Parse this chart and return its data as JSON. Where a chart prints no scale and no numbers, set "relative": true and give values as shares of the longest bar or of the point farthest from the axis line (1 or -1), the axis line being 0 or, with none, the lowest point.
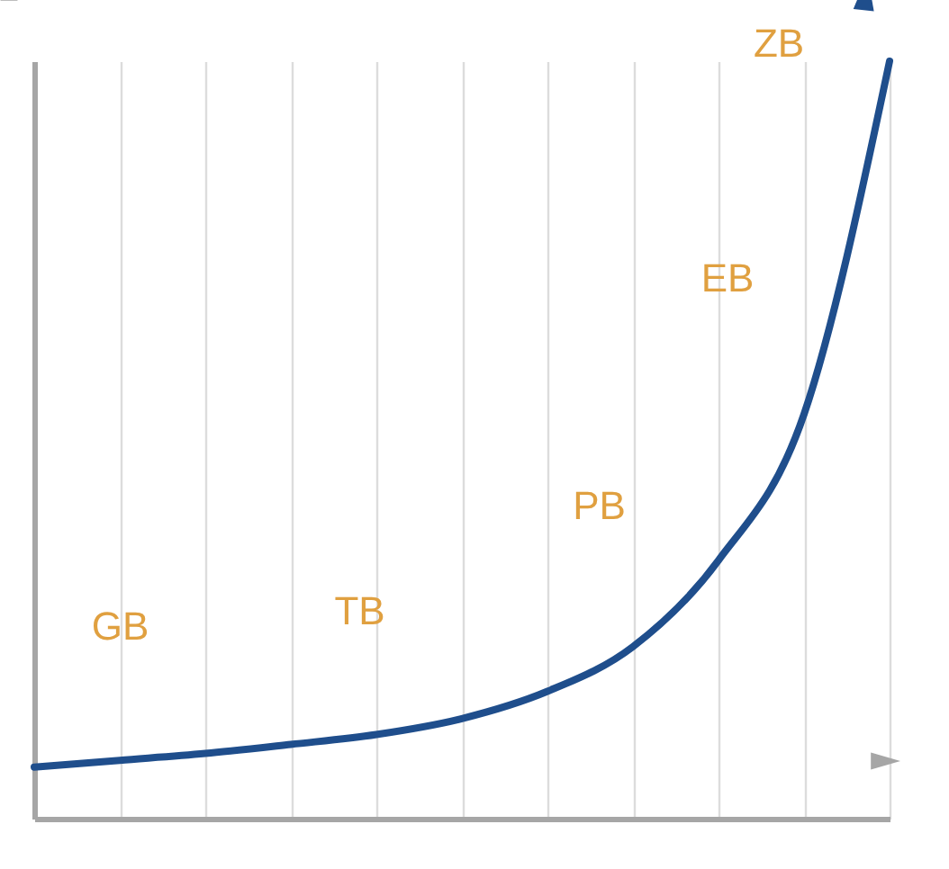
{
  "chart_data": {
    "type": "line",
    "relative": true,
    "categories": [
      null,
      null,
      null,
      null,
      null,
      null,
      null,
      null,
      null,
      null,
      null
    ],
    "series": [
      {
        "color": "#1f4e8c",
        "values": [
          0.068,
          0.077,
          0.086,
          0.098,
          0.111,
          0.132,
          0.168,
          0.227,
          0.341,
          0.534,
          1
        ]
      }
    ],
    "annotations": [
      "GB",
      "TB",
      "PB",
      "EB",
      "ZB"
    ],
    "grid": "x",
    "marker": "none",
    "line_style": "solid"
  }
}
